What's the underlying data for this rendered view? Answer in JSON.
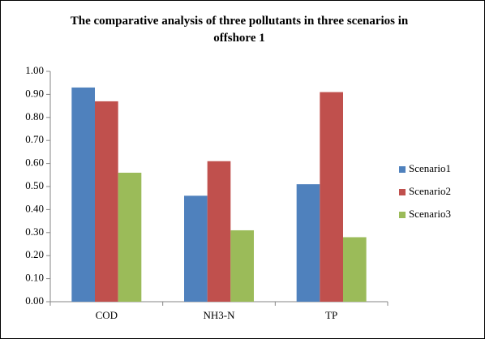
{
  "chart_data": {
    "type": "bar",
    "title": "The comparative analysis of three pollutants in three scenarios in offshore 1",
    "categories": [
      "COD",
      "NH3-N",
      "TP"
    ],
    "series": [
      {
        "name": "Scenario1",
        "color": "#4f81bd",
        "values": [
          0.93,
          0.46,
          0.51
        ]
      },
      {
        "name": "Scenario2",
        "color": "#c0504d",
        "values": [
          0.87,
          0.61,
          0.91
        ]
      },
      {
        "name": "Scenario3",
        "color": "#9bbb59",
        "values": [
          0.56,
          0.31,
          0.28
        ]
      }
    ],
    "ylim": [
      0,
      1
    ],
    "yticks": [
      {
        "value": 0,
        "label": "0.00"
      },
      {
        "value": 0.1,
        "label": "0.10"
      },
      {
        "value": 0.2,
        "label": "0.20"
      },
      {
        "value": 0.3,
        "label": "0.30"
      },
      {
        "value": 0.4,
        "label": "0.40"
      },
      {
        "value": 0.5,
        "label": "0.50"
      },
      {
        "value": 0.6,
        "label": "0.60"
      },
      {
        "value": 0.7,
        "label": "0.70"
      },
      {
        "value": 0.8,
        "label": "0.80"
      },
      {
        "value": 0.9,
        "label": "0.90"
      },
      {
        "value": 1,
        "label": "1.00"
      }
    ],
    "grid": false,
    "legend": "right"
  }
}
